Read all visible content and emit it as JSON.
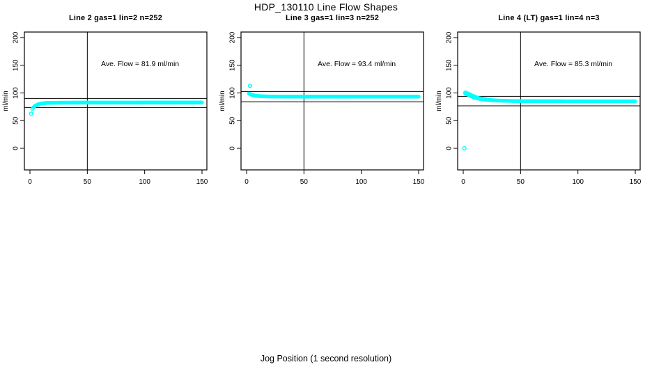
{
  "page_title": "HDP_130110  Line Flow Shapes",
  "x_axis_label": "Jog Position (1 second resolution)",
  "colors": {
    "points": "#00FFFF",
    "axis": "#000000",
    "background": "#FFFFFF"
  },
  "chart_data": [
    {
      "type": "scatter",
      "title": "Line 2 gas=1 lin=2 n=252",
      "ylabel": "ml/min",
      "annotation": "Ave. Flow =  81.9  ml/min",
      "ave_flow_ml_min": 81.9,
      "n_points": 252,
      "x_ticks": [
        0,
        50,
        100,
        150
      ],
      "y_ticks": [
        0,
        50,
        100,
        150,
        200
      ],
      "xlim": [
        0,
        150
      ],
      "ylim": [
        0,
        200
      ],
      "grid": false,
      "legend": false,
      "vline_x": 50,
      "hlines": [
        90.1,
        73.7
      ],
      "outlier_points": [
        [
          1,
          62.5
        ]
      ],
      "curve_points": [
        [
          2,
          71
        ],
        [
          3,
          74
        ],
        [
          4,
          76
        ],
        [
          5,
          77.5
        ],
        [
          6,
          78.5
        ],
        [
          8,
          80
        ],
        [
          10,
          81
        ],
        [
          13,
          81.7
        ],
        [
          16,
          82.1
        ],
        [
          20,
          82.3
        ],
        [
          30,
          82.5
        ],
        [
          50,
          82.6
        ],
        [
          100,
          82.7
        ],
        [
          150,
          82.7
        ]
      ],
      "spread_until_x": 0
    },
    {
      "type": "scatter",
      "title": "Line 3 gas=1 lin=3 n=252",
      "ylabel": "ml/min",
      "annotation": "Ave. Flow =  93.4  ml/min",
      "ave_flow_ml_min": 93.4,
      "n_points": 252,
      "x_ticks": [
        0,
        50,
        100,
        150
      ],
      "y_ticks": [
        0,
        50,
        100,
        150,
        200
      ],
      "xlim": [
        0,
        150
      ],
      "ylim": [
        0,
        200
      ],
      "grid": false,
      "legend": false,
      "vline_x": 50,
      "hlines": [
        102.7,
        84.1
      ],
      "outlier_points": [
        [
          3,
          113
        ]
      ],
      "curve_points": [
        [
          2,
          99
        ],
        [
          3,
          98
        ],
        [
          4,
          97
        ],
        [
          5,
          96.3
        ],
        [
          6,
          95.8
        ],
        [
          8,
          95
        ],
        [
          10,
          94.5
        ],
        [
          13,
          94
        ],
        [
          16,
          93.8
        ],
        [
          20,
          93.6
        ],
        [
          30,
          93.5
        ],
        [
          50,
          93.4
        ],
        [
          100,
          93.4
        ],
        [
          150,
          93.4
        ]
      ],
      "spread_until_x": 0
    },
    {
      "type": "scatter",
      "title": "Line 4 (LT) gas=1 lin=4 n=3",
      "ylabel": "ml/min",
      "annotation": "Ave. Flow =  85.3  ml/min",
      "ave_flow_ml_min": 85.3,
      "n_points": 3,
      "x_ticks": [
        0,
        50,
        100,
        150
      ],
      "y_ticks": [
        0,
        50,
        100,
        150,
        200
      ],
      "xlim": [
        0,
        150
      ],
      "ylim": [
        0,
        200
      ],
      "grid": false,
      "legend": false,
      "vline_x": 50,
      "hlines": [
        93.8,
        76.8
      ],
      "outlier_points": [
        [
          1,
          0
        ]
      ],
      "curve_points": [
        [
          2,
          100
        ],
        [
          3,
          99
        ],
        [
          4,
          98
        ],
        [
          5,
          97
        ],
        [
          6,
          96
        ],
        [
          8,
          94
        ],
        [
          10,
          92.5
        ],
        [
          12,
          91
        ],
        [
          15,
          89.5
        ],
        [
          18,
          88.5
        ],
        [
          22,
          87.5
        ],
        [
          26,
          86.8
        ],
        [
          30,
          86.3
        ],
        [
          40,
          85.6
        ],
        [
          50,
          85.3
        ],
        [
          70,
          85.1
        ],
        [
          100,
          85
        ],
        [
          150,
          85
        ]
      ],
      "spread_until_x": 20
    }
  ]
}
